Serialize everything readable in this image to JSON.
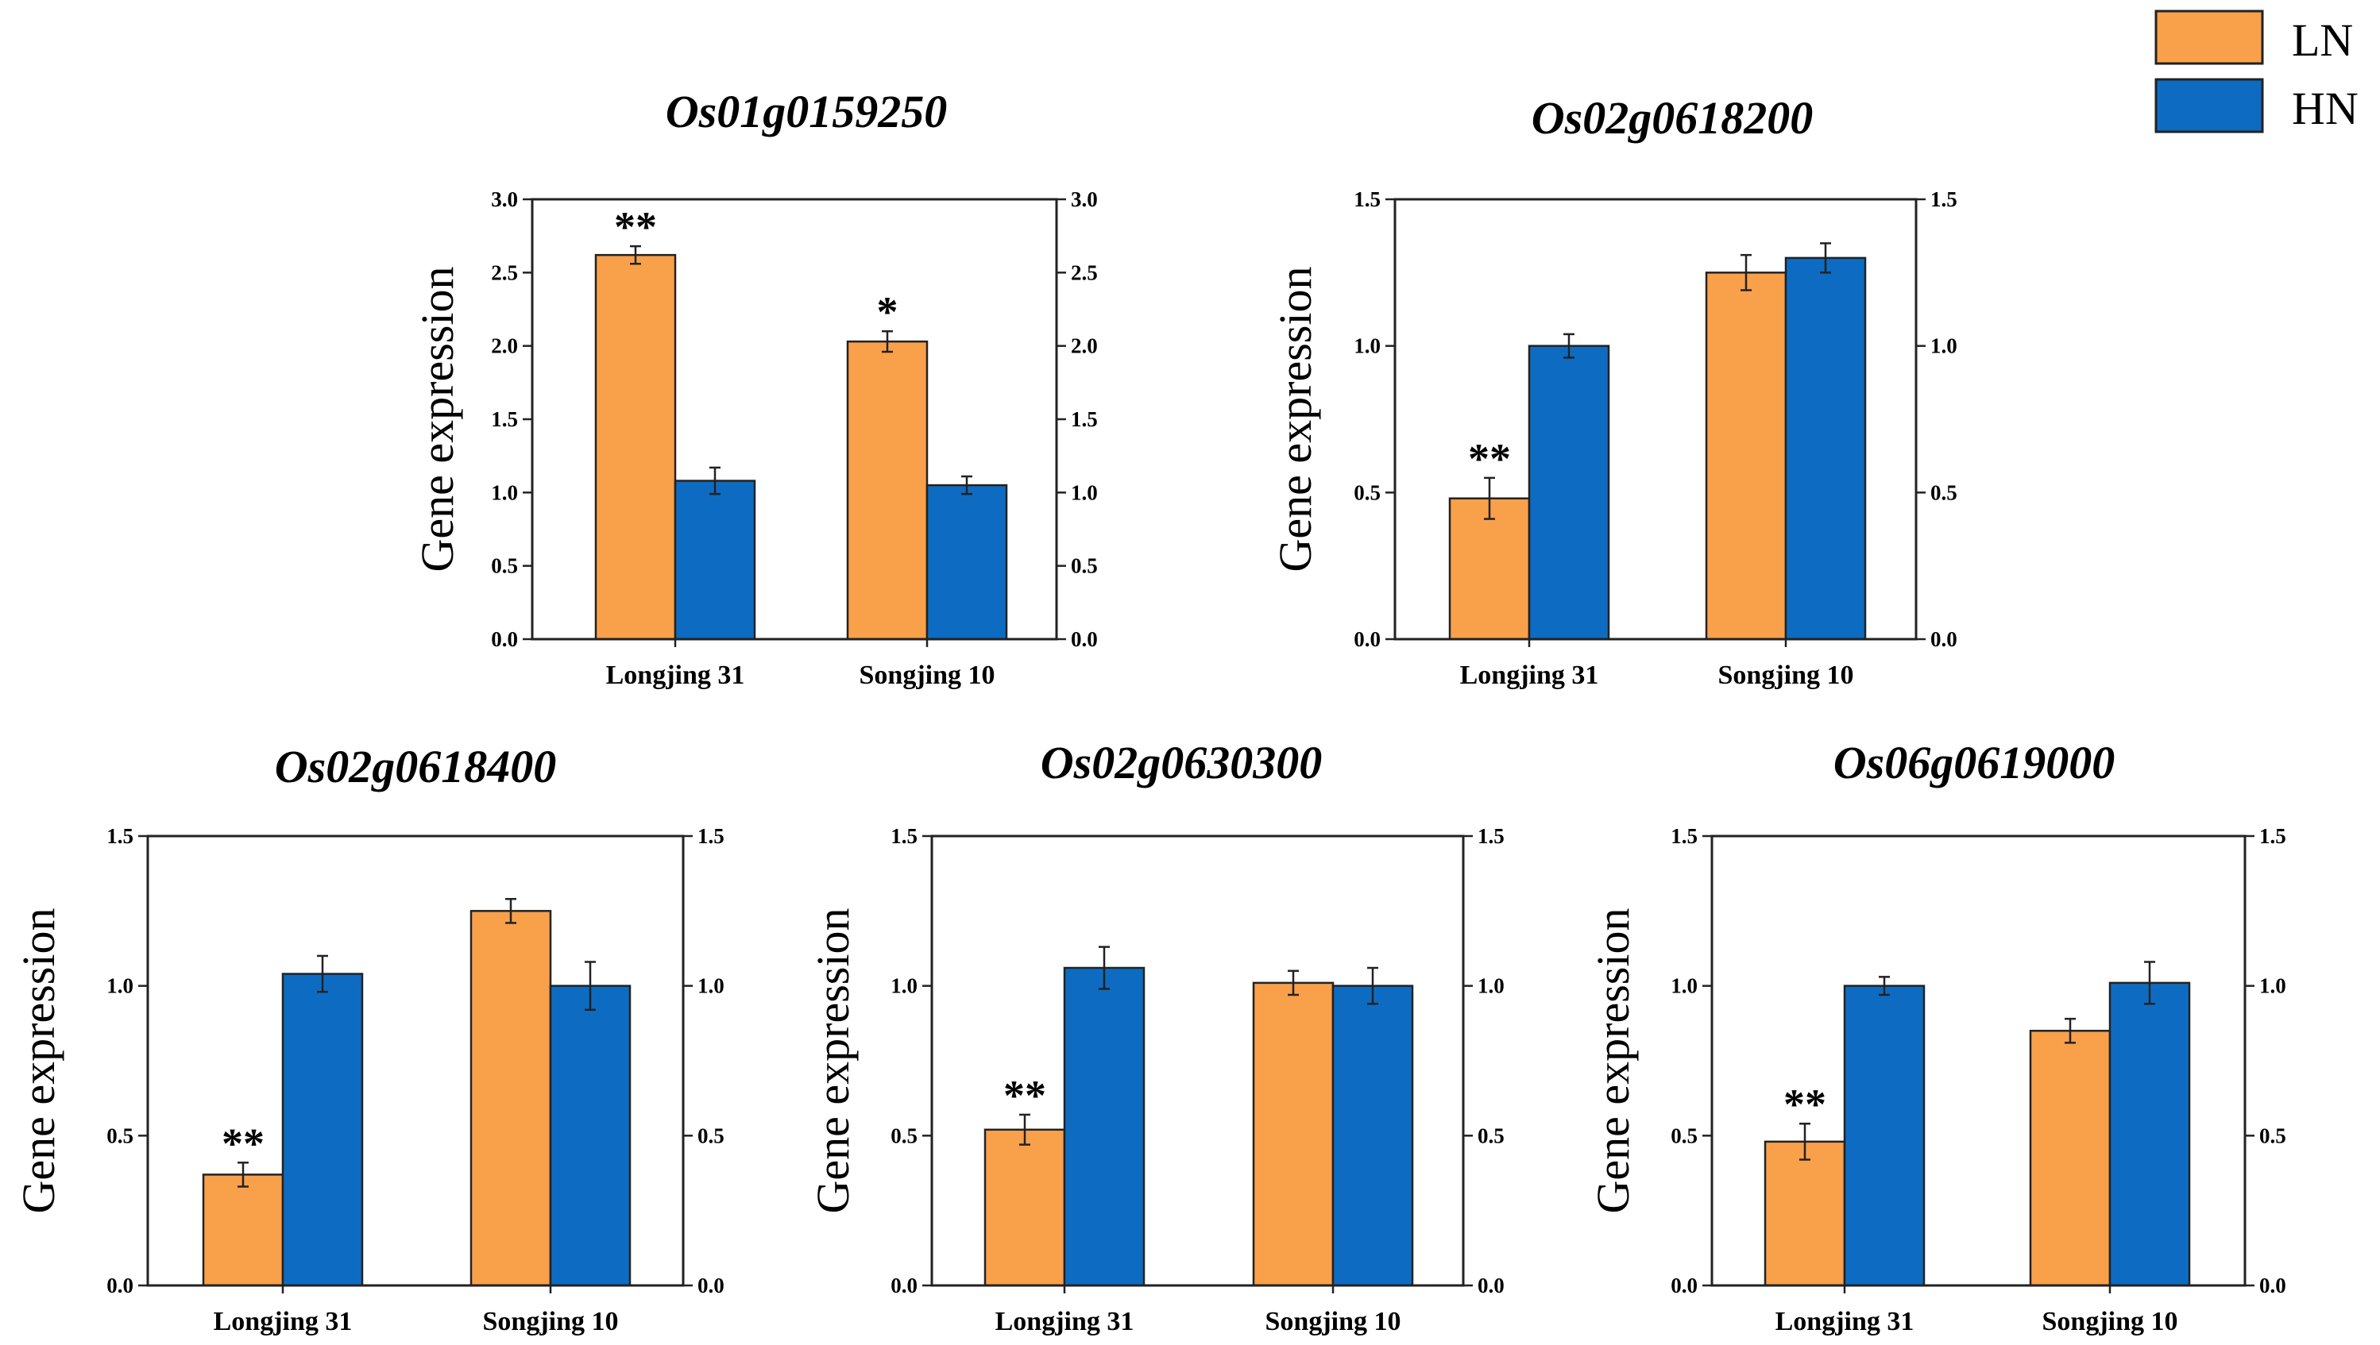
{
  "legend": {
    "items": [
      {
        "label": "LN",
        "color": "#F9A04B"
      },
      {
        "label": "HN",
        "color": "#0D6CC2"
      }
    ]
  },
  "chart_data": [
    {
      "type": "bar",
      "title": "Os01g0159250",
      "ylabel": "Gene expression",
      "xlabel": "",
      "categories": [
        "Longjing 31",
        "Songjing 10"
      ],
      "ylim": [
        0,
        3.0
      ],
      "yticks": [
        "0.0",
        "0.5",
        "1.0",
        "1.5",
        "2.0",
        "2.5",
        "3.0"
      ],
      "series": [
        {
          "name": "LN",
          "values": [
            2.62,
            2.03
          ],
          "errors": [
            0.06,
            0.07
          ]
        },
        {
          "name": "HN",
          "values": [
            1.08,
            1.05
          ],
          "errors": [
            0.09,
            0.06
          ]
        }
      ],
      "annotations": [
        {
          "category": "Longjing 31",
          "series": "LN",
          "text": "**"
        },
        {
          "category": "Songjing 10",
          "series": "LN",
          "text": "*"
        }
      ]
    },
    {
      "type": "bar",
      "title": "Os02g0618200",
      "ylabel": "Gene expression",
      "xlabel": "",
      "categories": [
        "Longjing 31",
        "Songjing 10"
      ],
      "ylim": [
        0,
        1.5
      ],
      "yticks": [
        "0.0",
        "0.5",
        "1.0",
        "1.5"
      ],
      "series": [
        {
          "name": "LN",
          "values": [
            0.48,
            1.25
          ],
          "errors": [
            0.07,
            0.06
          ]
        },
        {
          "name": "HN",
          "values": [
            1.0,
            1.3
          ],
          "errors": [
            0.04,
            0.05
          ]
        }
      ],
      "annotations": [
        {
          "category": "Longjing 31",
          "series": "LN",
          "text": "**"
        }
      ]
    },
    {
      "type": "bar",
      "title": "Os02g0618400",
      "ylabel": "Gene expression",
      "xlabel": "",
      "categories": [
        "Longjing 31",
        "Songjing 10"
      ],
      "ylim": [
        0,
        1.5
      ],
      "yticks": [
        "0.0",
        "0.5",
        "1.0",
        "1.5"
      ],
      "series": [
        {
          "name": "LN",
          "values": [
            0.37,
            1.25
          ],
          "errors": [
            0.04,
            0.04
          ]
        },
        {
          "name": "HN",
          "values": [
            1.04,
            1.0
          ],
          "errors": [
            0.06,
            0.08
          ]
        }
      ],
      "annotations": [
        {
          "category": "Longjing 31",
          "series": "LN",
          "text": "**"
        }
      ]
    },
    {
      "type": "bar",
      "title": "Os02g0630300",
      "ylabel": "Gene expression",
      "xlabel": "",
      "categories": [
        "Longjing 31",
        "Songjing 10"
      ],
      "ylim": [
        0,
        1.5
      ],
      "yticks": [
        "0.0",
        "0.5",
        "1.0",
        "1.5"
      ],
      "series": [
        {
          "name": "LN",
          "values": [
            0.52,
            1.01
          ],
          "errors": [
            0.05,
            0.04
          ]
        },
        {
          "name": "HN",
          "values": [
            1.06,
            1.0
          ],
          "errors": [
            0.07,
            0.06
          ]
        }
      ],
      "annotations": [
        {
          "category": "Longjing 31",
          "series": "LN",
          "text": "**"
        }
      ]
    },
    {
      "type": "bar",
      "title": "Os06g0619000",
      "ylabel": "Gene expression",
      "xlabel": "",
      "categories": [
        "Longjing 31",
        "Songjing 10"
      ],
      "ylim": [
        0,
        1.5
      ],
      "yticks": [
        "0.0",
        "0.5",
        "1.0",
        "1.5"
      ],
      "series": [
        {
          "name": "LN",
          "values": [
            0.48,
            0.85
          ],
          "errors": [
            0.06,
            0.04
          ]
        },
        {
          "name": "HN",
          "values": [
            1.0,
            1.01
          ],
          "errors": [
            0.03,
            0.07
          ]
        }
      ],
      "annotations": [
        {
          "category": "Longjing 31",
          "series": "LN",
          "text": "**"
        }
      ]
    }
  ]
}
